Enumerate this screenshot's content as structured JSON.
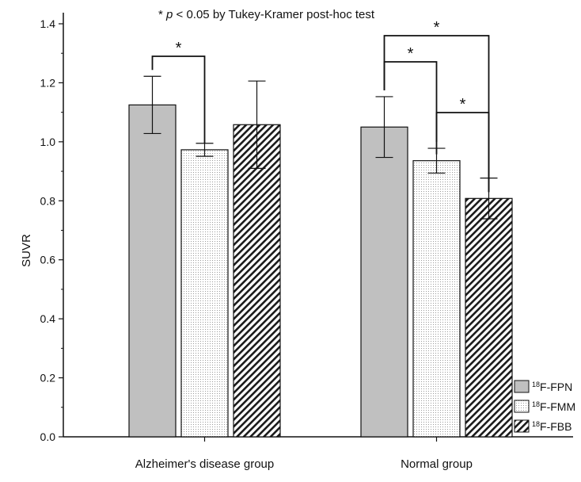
{
  "chart_data": {
    "type": "bar",
    "title": "",
    "note": {
      "star": "*",
      "p": "p",
      "rest": " < 0.05 by Tukey-Kramer post-hoc test"
    },
    "xlabel": "",
    "ylabel": "SUVR",
    "ylim": [
      0,
      1.4
    ],
    "yticks": [
      "0.0",
      "0.2",
      "0.4",
      "0.6",
      "0.8",
      "1.0",
      "1.2",
      "1.4"
    ],
    "categories": [
      "Alzheimer's disease group",
      "Normal group"
    ],
    "series": [
      {
        "name": "F-FPN",
        "sup": "18",
        "pattern": "solid-gray",
        "values": [
          1.125,
          1.05
        ],
        "errors": [
          0.097,
          0.103
        ]
      },
      {
        "name": "F-FMM",
        "sup": "18",
        "pattern": "dotted",
        "values": [
          0.973,
          0.936
        ],
        "errors": [
          0.022,
          0.042
        ]
      },
      {
        "name": "F-FBB",
        "sup": "18",
        "pattern": "hatched",
        "values": [
          1.058,
          0.808
        ],
        "errors": [
          0.148,
          0.069
        ]
      }
    ],
    "legend_position": "bottom-right",
    "significance": [
      {
        "group": 0,
        "from": 0,
        "to": 1,
        "label": "*"
      },
      {
        "group": 1,
        "from": 0,
        "to": 1,
        "label": "*"
      },
      {
        "group": 1,
        "from": 1,
        "to": 2,
        "label": "*"
      },
      {
        "group": 1,
        "from": 0,
        "to": 2,
        "label": "*"
      }
    ],
    "colors": {
      "fpn": "#c0c0c0",
      "axis": "#111111"
    }
  }
}
